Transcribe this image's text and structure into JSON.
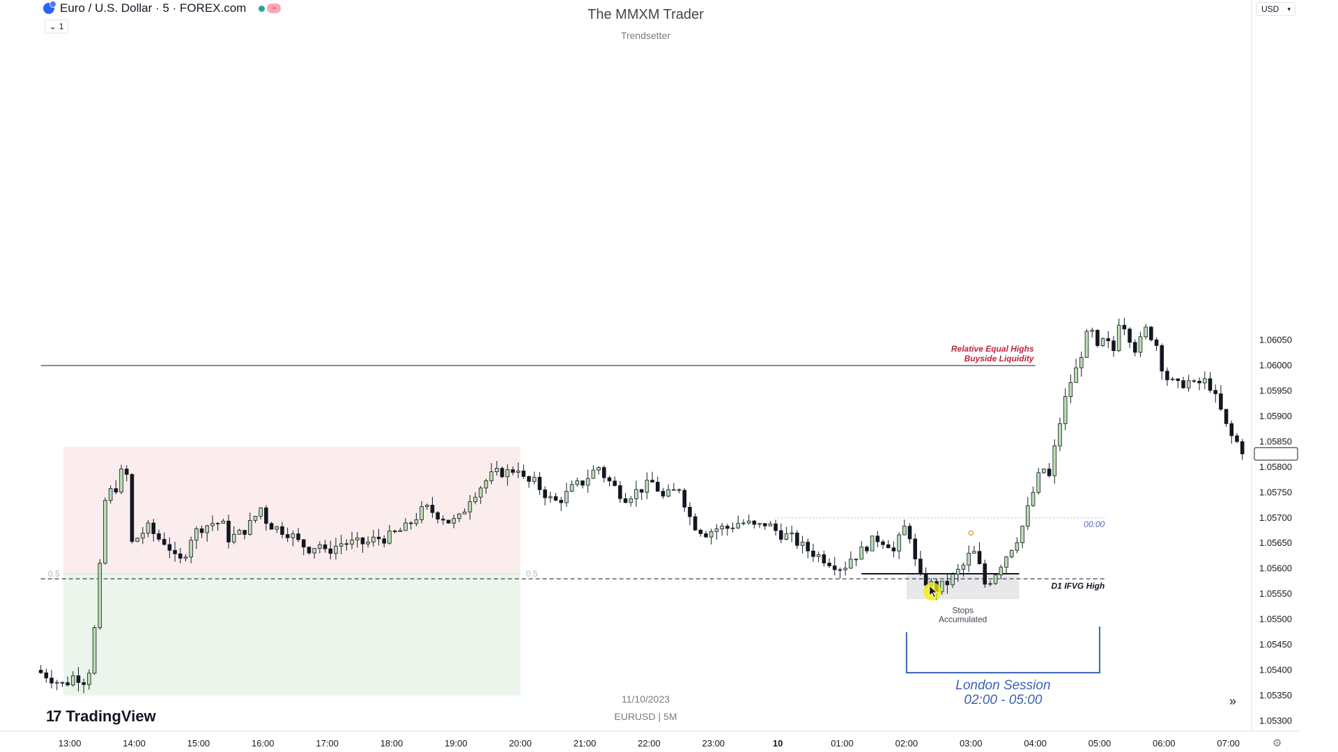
{
  "header": {
    "symbol_title": "Euro / U.S. Dollar · 5 · FOREX.com",
    "collapse_label": "1",
    "indicator_badge": "≈"
  },
  "watermark": {
    "title": "The MMXM Trader",
    "subtitle": "Trendsetter",
    "date": "11/10/2023",
    "symbol": "EURUSD | 5M"
  },
  "currency_selector": "USD",
  "brand": {
    "logo": "17",
    "name": "TradingView"
  },
  "jump_button": "»",
  "chart_data": {
    "type": "candlestick",
    "symbol": "EURUSD",
    "timeframe": "5",
    "ylim": [
      1.0528,
      1.0672
    ],
    "y_ticks": [
      "1.06050",
      "1.06000",
      "1.05950",
      "1.05900",
      "1.05850",
      "1.05800",
      "1.05750",
      "1.05700",
      "1.05650",
      "1.05600",
      "1.05550",
      "1.05500",
      "1.05450",
      "1.05400",
      "1.05350",
      "1.05300"
    ],
    "y_tick_values": [
      1.0605,
      1.06,
      1.0595,
      1.059,
      1.0585,
      1.058,
      1.0575,
      1.057,
      1.0565,
      1.056,
      1.0555,
      1.055,
      1.0545,
      1.054,
      1.0535,
      1.053
    ],
    "x_ticks": [
      "13:00",
      "14:00",
      "15:00",
      "16:00",
      "17:00",
      "18:00",
      "19:00",
      "20:00",
      "21:00",
      "22:00",
      "23:00",
      "10",
      "01:00",
      "02:00",
      "03:00",
      "04:00",
      "05:00",
      "06:00",
      "07:00"
    ],
    "x_tick_hours": [
      13,
      14,
      15,
      16,
      17,
      18,
      19,
      20,
      21,
      22,
      23,
      24,
      25,
      26,
      27,
      28,
      29,
      30,
      31
    ],
    "bold_tick": "10",
    "last_price": "1.05826",
    "path": [
      [
        12.55,
        1.054
      ],
      [
        12.72,
        1.0539
      ],
      [
        12.85,
        1.0538
      ],
      [
        13.0,
        1.0537
      ],
      [
        13.15,
        1.0539
      ],
      [
        13.3,
        1.0538
      ],
      [
        13.42,
        1.0541
      ],
      [
        13.48,
        1.055
      ],
      [
        13.55,
        1.056
      ],
      [
        13.62,
        1.0573
      ],
      [
        13.7,
        1.0575
      ],
      [
        13.8,
        1.0576
      ],
      [
        13.95,
        1.0581
      ],
      [
        14.05,
        1.0565
      ],
      [
        14.2,
        1.0567
      ],
      [
        14.3,
        1.0568
      ],
      [
        14.45,
        1.0566
      ],
      [
        14.6,
        1.0565
      ],
      [
        14.75,
        1.0561
      ],
      [
        14.85,
        1.0562
      ],
      [
        14.95,
        1.0566
      ],
      [
        15.1,
        1.0568
      ],
      [
        15.3,
        1.0569
      ],
      [
        15.45,
        1.0569
      ],
      [
        15.55,
        1.0566
      ],
      [
        15.75,
        1.0567
      ],
      [
        15.9,
        1.0569
      ],
      [
        16.05,
        1.0572
      ],
      [
        16.15,
        1.0569
      ],
      [
        16.3,
        1.0568
      ],
      [
        16.5,
        1.0567
      ],
      [
        16.65,
        1.0565
      ],
      [
        16.8,
        1.0564
      ],
      [
        17.0,
        1.0565
      ],
      [
        17.05,
        1.0563
      ],
      [
        17.15,
        1.0564
      ],
      [
        17.3,
        1.0565
      ],
      [
        17.5,
        1.0565
      ],
      [
        17.7,
        1.0565
      ],
      [
        17.85,
        1.0566
      ],
      [
        18.0,
        1.0566
      ],
      [
        18.15,
        1.0567
      ],
      [
        18.3,
        1.0568
      ],
      [
        18.45,
        1.057
      ],
      [
        18.6,
        1.0572
      ],
      [
        18.75,
        1.0571
      ],
      [
        18.9,
        1.057
      ],
      [
        19.0,
        1.0569
      ],
      [
        19.15,
        1.057
      ],
      [
        19.3,
        1.0574
      ],
      [
        19.45,
        1.0576
      ],
      [
        19.6,
        1.0578
      ],
      [
        19.75,
        1.0579
      ],
      [
        19.9,
        1.0579
      ],
      [
        20.05,
        1.058
      ],
      [
        20.15,
        1.0577
      ],
      [
        20.3,
        1.0577
      ],
      [
        20.45,
        1.0575
      ],
      [
        20.6,
        1.0573
      ],
      [
        20.75,
        1.0574
      ],
      [
        20.9,
        1.0576
      ],
      [
        21.05,
        1.0577
      ],
      [
        21.2,
        1.0579
      ],
      [
        21.3,
        1.058
      ],
      [
        21.4,
        1.0578
      ],
      [
        21.55,
        1.0576
      ],
      [
        21.7,
        1.0574
      ],
      [
        21.85,
        1.0575
      ],
      [
        22.0,
        1.0576
      ],
      [
        22.15,
        1.0577
      ],
      [
        22.3,
        1.0574
      ],
      [
        22.45,
        1.0575
      ],
      [
        22.55,
        1.0576
      ],
      [
        22.75,
        1.0569
      ],
      [
        22.95,
        1.0567
      ],
      [
        23.15,
        1.0568
      ],
      [
        23.3,
        1.0568
      ],
      [
        23.45,
        1.0569
      ],
      [
        23.6,
        1.0569
      ],
      [
        23.75,
        1.0568
      ],
      [
        23.9,
        1.0569
      ],
      [
        24.1,
        1.0567
      ],
      [
        24.3,
        1.0566
      ],
      [
        24.5,
        1.0564
      ],
      [
        24.65,
        1.0563
      ],
      [
        24.8,
        1.0562
      ],
      [
        24.95,
        1.0561
      ],
      [
        25.1,
        1.056
      ],
      [
        25.2,
        1.0562
      ],
      [
        25.35,
        1.0563
      ],
      [
        25.5,
        1.0565
      ],
      [
        25.65,
        1.0566
      ],
      [
        25.8,
        1.0565
      ],
      [
        25.9,
        1.0563
      ],
      [
        26.0,
        1.0567
      ],
      [
        26.1,
        1.0569
      ],
      [
        26.2,
        1.0562
      ],
      [
        26.3,
        1.0558
      ],
      [
        26.45,
        1.0557
      ],
      [
        26.55,
        1.0556
      ],
      [
        26.7,
        1.0557
      ],
      [
        26.85,
        1.0559
      ],
      [
        27.0,
        1.0561
      ],
      [
        27.1,
        1.0564
      ],
      [
        27.2,
        1.0561
      ],
      [
        27.3,
        1.0557
      ],
      [
        27.4,
        1.0558
      ],
      [
        27.55,
        1.0561
      ],
      [
        27.7,
        1.0564
      ],
      [
        27.85,
        1.0567
      ],
      [
        28.0,
        1.0573
      ],
      [
        28.1,
        1.0577
      ],
      [
        28.2,
        1.058
      ],
      [
        28.3,
        1.0578
      ],
      [
        28.45,
        1.0588
      ],
      [
        28.6,
        1.0596
      ],
      [
        28.75,
        1.06
      ],
      [
        28.85,
        1.0605
      ],
      [
        28.95,
        1.0607
      ],
      [
        29.05,
        1.0603
      ],
      [
        29.15,
        1.0605
      ],
      [
        29.3,
        1.0603
      ],
      [
        29.4,
        1.061
      ],
      [
        29.5,
        1.0607
      ],
      [
        29.65,
        1.0603
      ],
      [
        29.8,
        1.0607
      ],
      [
        29.95,
        1.0605
      ],
      [
        30.05,
        1.06
      ],
      [
        30.15,
        1.0597
      ],
      [
        30.3,
        1.0596
      ],
      [
        30.45,
        1.0597
      ],
      [
        30.55,
        1.0596
      ],
      [
        30.7,
        1.0597
      ],
      [
        30.8,
        1.0596
      ],
      [
        30.9,
        1.0593
      ],
      [
        31.0,
        1.059
      ],
      [
        31.1,
        1.0586
      ],
      [
        31.2,
        1.0586
      ],
      [
        31.25,
        1.05826
      ]
    ],
    "zones": [
      {
        "name": "premium",
        "from_hour": 12.9,
        "to_hour": 20.0,
        "from_price": 1.0584,
        "to_price": 1.0559,
        "color": "#fbeced"
      },
      {
        "name": "discount",
        "from_hour": 12.9,
        "to_hour": 20.0,
        "from_price": 1.0559,
        "to_price": 1.0535,
        "color": "#ebf5ec"
      },
      {
        "name": "stops",
        "from_hour": 26.0,
        "to_hour": 27.75,
        "from_price": 1.0559,
        "to_price": 1.0554,
        "color": "#e8e8eb"
      }
    ],
    "lines": [
      {
        "name": "relative-equal-highs",
        "price": 1.06,
        "from_hour": 12.55,
        "to_hour": 28.0,
        "style": "solid",
        "color": "#131722"
      },
      {
        "name": "d1-ifvg-high",
        "price": 1.0558,
        "from_hour": 12.55,
        "to_hour": 29.1,
        "style": "dashed",
        "color": "#131722"
      },
      {
        "name": "midnight-open",
        "price": 1.057,
        "from_hour": 24.0,
        "to_hour": 29.1,
        "style": "dotted",
        "color": "#b2b5be"
      },
      {
        "name": "equilibrium",
        "price": 1.0559,
        "from_hour": 12.9,
        "to_hour": 20.0,
        "style": "solid",
        "color": "#c8e6c9"
      },
      {
        "name": "stops-low",
        "price": 1.0559,
        "from_hour": 25.3,
        "to_hour": 27.75,
        "style": "solid",
        "color": "#131722"
      }
    ],
    "session": {
      "from_hour": 26.0,
      "to_hour": 29.0,
      "top_price": 1.05475,
      "bottom_price": 1.05395
    },
    "annotations": {
      "buyside_line1": "Relative Equal Highs",
      "buyside_line2": "Buyside Liquidity",
      "d1_label": "D1 IFVG High",
      "midnight_label": "00:00",
      "eq_label": "0.5",
      "stops_line1": "Stops",
      "stops_line2": "Accumulated",
      "london_line1": "London Session",
      "london_line2": "02:00 - 05:00"
    },
    "colors": {
      "bull": "#b7deb0",
      "bear": "#131722",
      "wick": "#131722",
      "accent_red": "#c0233f",
      "session_blue": "#3d5fb8",
      "label_blue": "#5b62c2"
    }
  }
}
